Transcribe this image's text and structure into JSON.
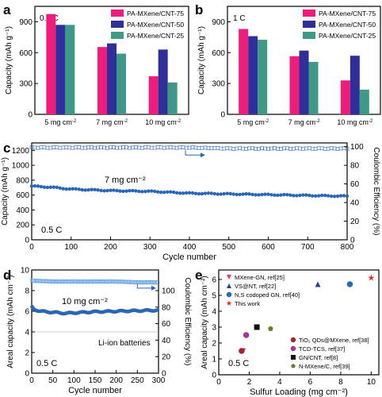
{
  "panels": {
    "a": {
      "label": "a",
      "rate": "0.5 C"
    },
    "b": {
      "label": "b",
      "rate": "1 C"
    },
    "c": {
      "label": "c",
      "rate": "0.5 C",
      "annotation": "7 mg cm⁻²"
    },
    "d": {
      "label": "d",
      "rate": "0.5 C",
      "annotation": "10 mg cm⁻²",
      "note": "Li-ion batteries"
    },
    "e": {
      "label": "e",
      "rate": "0.5 C"
    }
  },
  "colors": {
    "pa75": "#ee1c7b",
    "pa50": "#2f2f9a",
    "pa25": "#3e9a86",
    "blue": "#2a66b8",
    "star": "#e8262b"
  },
  "chart_data": [
    {
      "panel": "a",
      "type": "bar",
      "categories": [
        "5 mg cm⁻²",
        "7 mg cm⁻²",
        "10 mg cm⁻²"
      ],
      "series": [
        {
          "name": "PA-MXene/CNT-75",
          "values": [
            975,
            655,
            370
          ]
        },
        {
          "name": "PA-MXene/CNT-50",
          "values": [
            870,
            690,
            630
          ]
        },
        {
          "name": "PA-MXene/CNT-25",
          "values": [
            870,
            590,
            310
          ]
        }
      ],
      "ylabel": "Capacity (mAh g⁻¹)",
      "ylim": [
        0,
        1050
      ],
      "yticks": [
        "0",
        "300",
        "600",
        "900"
      ],
      "legend": "top-right"
    },
    {
      "panel": "b",
      "type": "bar",
      "categories": [
        "5 mg cm⁻²",
        "7 mg cm⁻²",
        "10 mg cm⁻²"
      ],
      "series": [
        {
          "name": "PA-MXene/CNT-75",
          "values": [
            830,
            565,
            330
          ]
        },
        {
          "name": "PA-MXene/CNT-50",
          "values": [
            760,
            620,
            570
          ]
        },
        {
          "name": "PA-MXene/CNT-25",
          "values": [
            725,
            510,
            240
          ]
        }
      ],
      "ylabel": "Capacity (mAh g⁻¹)",
      "ylim": [
        0,
        1050
      ],
      "yticks": [
        "0",
        "300",
        "600",
        "900"
      ],
      "legend": "top-right"
    },
    {
      "panel": "c",
      "type": "scatter",
      "xlabel": "Cycle number",
      "ylabel": "Capacity (mAh g⁻¹)",
      "y2label": "Coulombic Efficiency (%)",
      "xlim": [
        0,
        800
      ],
      "ylim": [
        0,
        1300
      ],
      "y2lim": [
        0,
        104
      ],
      "xticks": [
        "0",
        "100",
        "200",
        "300",
        "400",
        "500",
        "600",
        "700",
        "800"
      ],
      "yticks": [
        "0",
        "200",
        "400",
        "600",
        "800",
        "1000",
        "1200"
      ],
      "y2ticks": [
        "0",
        "20",
        "40",
        "60",
        "80",
        "100"
      ],
      "series": [
        {
          "axis": "left",
          "x": [
            0,
            50,
            100,
            200,
            300,
            400,
            500,
            600,
            700,
            800
          ],
          "y": [
            720,
            705,
            680,
            660,
            650,
            625,
            615,
            605,
            595,
            585
          ]
        },
        {
          "axis": "right",
          "x": [
            0,
            100,
            200,
            300,
            400,
            500,
            600,
            700,
            800
          ],
          "y": [
            99,
            99,
            99,
            99,
            99,
            98,
            98,
            98,
            98
          ]
        }
      ]
    },
    {
      "panel": "d",
      "type": "scatter",
      "xlabel": "Cycle number",
      "ylabel": "Areal capacity (mAh cm⁻²)",
      "y2label": "Coulombic Efficiency (%)",
      "xlim": [
        0,
        300
      ],
      "ylim": [
        0,
        10
      ],
      "y2lim": [
        0,
        125
      ],
      "xticks": [
        "0",
        "50",
        "100",
        "150",
        "200",
        "250",
        "300"
      ],
      "yticks": [
        "0",
        "2",
        "4",
        "6",
        "8",
        "10"
      ],
      "y2ticks": [
        "0",
        "20",
        "40",
        "60",
        "80",
        "100"
      ],
      "series": [
        {
          "axis": "left",
          "x": [
            1,
            5,
            20,
            50,
            80,
            100,
            150,
            200,
            250,
            300
          ],
          "y": [
            6.4,
            6.2,
            6.0,
            5.9,
            5.8,
            5.85,
            5.95,
            6.0,
            6.05,
            6.1
          ]
        },
        {
          "axis": "right",
          "x": [
            0,
            50,
            100,
            150,
            200,
            250,
            300
          ],
          "y": [
            112,
            111,
            111,
            111,
            111,
            110,
            110
          ]
        }
      ]
    },
    {
      "panel": "e",
      "type": "scatter",
      "xlabel": "Sulfur Loading (mg cm⁻²)",
      "ylabel": "Areal capacity (mAh cm⁻²)",
      "xlim": [
        0,
        10.5
      ],
      "ylim": [
        0,
        6.6
      ],
      "xticks": [
        "0",
        "2",
        "4",
        "6",
        "8",
        "10"
      ],
      "yticks": [
        "0",
        "1",
        "2",
        "3",
        "4",
        "5",
        "6"
      ],
      "points": [
        {
          "name": "MXene-GN, ref[25]",
          "x": 1.6,
          "y": 1.5,
          "marker": "tri-down",
          "color": "#e03a8c"
        },
        {
          "name": "VS@NT, ref[22]",
          "x": 6.5,
          "y": 5.7,
          "marker": "tri-up",
          "color": "#2a3f9b"
        },
        {
          "name": "N,S codoped GN, ref[40]",
          "x": 8.6,
          "y": 5.7,
          "marker": "circle",
          "color": "#1f6fc2"
        },
        {
          "name": "This work",
          "x": 10,
          "y": 6.1,
          "marker": "star",
          "color": "#e8262b"
        },
        {
          "name": "TiO₂ QDs@MXene, ref[38]",
          "x": 1.5,
          "y": 1.5,
          "marker": "circle",
          "color": "#b01f2a"
        },
        {
          "name": "TCD-TCS, ref[37]",
          "x": 1.8,
          "y": 2.5,
          "marker": "circle",
          "color": "#b02fa8"
        },
        {
          "name": "GN/CNT, ref[8]",
          "x": 2.5,
          "y": 3.0,
          "marker": "square",
          "color": "#111111"
        },
        {
          "name": "N-MXene/C, ref[39]",
          "x": 3.4,
          "y": 2.9,
          "marker": "pentagon",
          "color": "#6b7b2a"
        }
      ]
    }
  ]
}
